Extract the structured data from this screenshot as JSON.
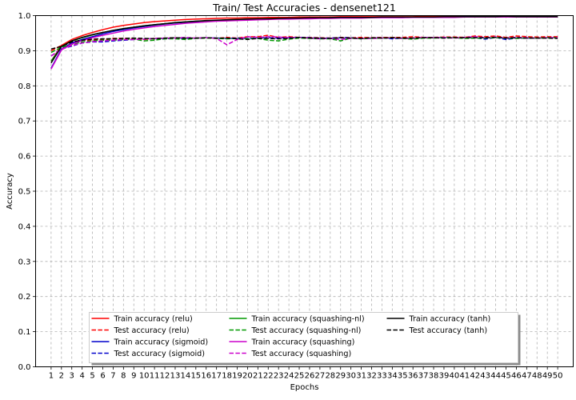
{
  "chart_data": {
    "type": "line",
    "title": "Train/ Test Accuracies - densenet121",
    "xlabel": "Epochs",
    "ylabel": "Accuracy",
    "xlim": [
      -0.5,
      51.5
    ],
    "ylim": [
      0.0,
      1.0
    ],
    "x": [
      1,
      2,
      3,
      4,
      5,
      6,
      7,
      8,
      9,
      10,
      11,
      12,
      13,
      14,
      15,
      16,
      17,
      18,
      19,
      20,
      21,
      22,
      23,
      24,
      25,
      26,
      27,
      28,
      29,
      30,
      31,
      32,
      33,
      34,
      35,
      36,
      37,
      38,
      39,
      40,
      41,
      42,
      43,
      44,
      45,
      46,
      47,
      48,
      49,
      50
    ],
    "yticks": [
      0.0,
      0.1,
      0.2,
      0.3,
      0.4,
      0.5,
      0.6,
      0.7,
      0.8,
      0.9,
      1.0
    ],
    "ytick_labels": [
      "0.0",
      "0.1",
      "0.2",
      "0.3",
      "0.4",
      "0.5",
      "0.6",
      "0.7",
      "0.8",
      "0.9",
      "1.0"
    ],
    "grid": true,
    "legend": {
      "placement": "lower-center",
      "columns": 3
    },
    "series": [
      {
        "name": "Train accuracy (relu)",
        "color": "#ff0000",
        "dash": "solid",
        "values": [
          0.87,
          0.915,
          0.932,
          0.943,
          0.952,
          0.96,
          0.967,
          0.972,
          0.976,
          0.98,
          0.983,
          0.985,
          0.987,
          0.989,
          0.99,
          0.991,
          0.992,
          0.993,
          0.993,
          0.994,
          0.994,
          0.995,
          0.995,
          0.995,
          0.996,
          0.996,
          0.996,
          0.996,
          0.997,
          0.997,
          0.997,
          0.997,
          0.997,
          0.997,
          0.997,
          0.997,
          0.998,
          0.998,
          0.998,
          0.998,
          0.998,
          0.998,
          0.998,
          0.998,
          0.998,
          0.998,
          0.998,
          0.998,
          0.998,
          0.998
        ]
      },
      {
        "name": "Test accuracy (relu)",
        "color": "#ff0000",
        "dash": "dashed",
        "values": [
          0.9,
          0.915,
          0.925,
          0.93,
          0.93,
          0.932,
          0.935,
          0.935,
          0.935,
          0.932,
          0.935,
          0.935,
          0.937,
          0.935,
          0.936,
          0.937,
          0.935,
          0.938,
          0.936,
          0.94,
          0.94,
          0.944,
          0.938,
          0.94,
          0.938,
          0.938,
          0.937,
          0.936,
          0.938,
          0.937,
          0.938,
          0.937,
          0.938,
          0.938,
          0.938,
          0.94,
          0.938,
          0.938,
          0.939,
          0.939,
          0.938,
          0.942,
          0.94,
          0.942,
          0.938,
          0.942,
          0.94,
          0.939,
          0.94,
          0.94
        ]
      },
      {
        "name": "Train accuracy (sigmoid)",
        "color": "#0000cc",
        "dash": "solid",
        "values": [
          0.85,
          0.905,
          0.922,
          0.932,
          0.94,
          0.948,
          0.955,
          0.96,
          0.965,
          0.969,
          0.973,
          0.976,
          0.979,
          0.981,
          0.983,
          0.985,
          0.986,
          0.987,
          0.988,
          0.989,
          0.99,
          0.991,
          0.991,
          0.992,
          0.992,
          0.993,
          0.993,
          0.994,
          0.994,
          0.994,
          0.995,
          0.995,
          0.995,
          0.995,
          0.996,
          0.996,
          0.996,
          0.996,
          0.996,
          0.996,
          0.997,
          0.997,
          0.997,
          0.997,
          0.997,
          0.997,
          0.997,
          0.997,
          0.997,
          0.997
        ]
      },
      {
        "name": "Test accuracy (sigmoid)",
        "color": "#0000cc",
        "dash": "dashed",
        "values": [
          0.885,
          0.905,
          0.913,
          0.922,
          0.925,
          0.925,
          0.928,
          0.93,
          0.932,
          0.933,
          0.935,
          0.934,
          0.936,
          0.935,
          0.936,
          0.937,
          0.936,
          0.935,
          0.936,
          0.935,
          0.936,
          0.937,
          0.936,
          0.937,
          0.938,
          0.937,
          0.936,
          0.936,
          0.937,
          0.937,
          0.934,
          0.936,
          0.937,
          0.934,
          0.936,
          0.934,
          0.937,
          0.937,
          0.938,
          0.937,
          0.936,
          0.937,
          0.933,
          0.938,
          0.932,
          0.936,
          0.936,
          0.936,
          0.937,
          0.937
        ]
      },
      {
        "name": "Train accuracy (squashing-nl)",
        "color": "#009900",
        "dash": "solid",
        "values": [
          0.87,
          0.912,
          0.928,
          0.937,
          0.945,
          0.952,
          0.958,
          0.963,
          0.967,
          0.971,
          0.974,
          0.977,
          0.98,
          0.982,
          0.984,
          0.985,
          0.986,
          0.988,
          0.989,
          0.99,
          0.99,
          0.991,
          0.992,
          0.992,
          0.993,
          0.993,
          0.993,
          0.994,
          0.994,
          0.994,
          0.995,
          0.995,
          0.995,
          0.995,
          0.995,
          0.996,
          0.996,
          0.996,
          0.996,
          0.996,
          0.996,
          0.997,
          0.997,
          0.997,
          0.997,
          0.997,
          0.997,
          0.997,
          0.997,
          0.997
        ]
      },
      {
        "name": "Test accuracy (squashing-nl)",
        "color": "#009900",
        "dash": "dashed",
        "values": [
          0.895,
          0.91,
          0.918,
          0.925,
          0.928,
          0.93,
          0.93,
          0.932,
          0.933,
          0.928,
          0.93,
          0.934,
          0.934,
          0.932,
          0.935,
          0.936,
          0.935,
          0.934,
          0.935,
          0.934,
          0.935,
          0.93,
          0.928,
          0.933,
          0.936,
          0.935,
          0.934,
          0.934,
          0.928,
          0.936,
          0.934,
          0.935,
          0.936,
          0.937,
          0.935,
          0.933,
          0.936,
          0.936,
          0.938,
          0.937,
          0.935,
          0.936,
          0.936,
          0.937,
          0.936,
          0.935,
          0.937,
          0.936,
          0.937,
          0.937
        ]
      },
      {
        "name": "Train accuracy (squashing)",
        "color": "#cc00cc",
        "dash": "solid",
        "values": [
          0.848,
          0.902,
          0.919,
          0.929,
          0.937,
          0.944,
          0.95,
          0.956,
          0.961,
          0.965,
          0.969,
          0.972,
          0.975,
          0.978,
          0.98,
          0.982,
          0.984,
          0.985,
          0.986,
          0.987,
          0.988,
          0.989,
          0.99,
          0.99,
          0.991,
          0.991,
          0.992,
          0.992,
          0.993,
          0.993,
          0.993,
          0.994,
          0.994,
          0.994,
          0.994,
          0.995,
          0.995,
          0.995,
          0.995,
          0.995,
          0.996,
          0.996,
          0.996,
          0.996,
          0.996,
          0.996,
          0.996,
          0.996,
          0.996,
          0.996
        ]
      },
      {
        "name": "Test accuracy (squashing)",
        "color": "#cc00cc",
        "dash": "dashed",
        "values": [
          0.885,
          0.905,
          0.915,
          0.922,
          0.926,
          0.928,
          0.93,
          0.932,
          0.932,
          0.933,
          0.935,
          0.936,
          0.936,
          0.938,
          0.936,
          0.937,
          0.935,
          0.917,
          0.932,
          0.94,
          0.938,
          0.94,
          0.939,
          0.937,
          0.938,
          0.936,
          0.934,
          0.935,
          0.932,
          0.935,
          0.935,
          0.935,
          0.936,
          0.937,
          0.935,
          0.936,
          0.938,
          0.937,
          0.938,
          0.936,
          0.938,
          0.94,
          0.937,
          0.939,
          0.936,
          0.938,
          0.937,
          0.936,
          0.937,
          0.937
        ]
      },
      {
        "name": "Train accuracy (tanh)",
        "color": "#000000",
        "dash": "solid",
        "values": [
          0.865,
          0.912,
          0.928,
          0.938,
          0.946,
          0.952,
          0.958,
          0.963,
          0.967,
          0.971,
          0.974,
          0.977,
          0.98,
          0.982,
          0.984,
          0.986,
          0.987,
          0.988,
          0.989,
          0.99,
          0.991,
          0.991,
          0.992,
          0.993,
          0.993,
          0.994,
          0.994,
          0.994,
          0.995,
          0.995,
          0.995,
          0.995,
          0.996,
          0.996,
          0.996,
          0.996,
          0.996,
          0.996,
          0.997,
          0.997,
          0.997,
          0.997,
          0.997,
          0.997,
          0.998,
          0.997,
          0.997,
          0.997,
          0.997,
          0.997
        ]
      },
      {
        "name": "Test accuracy (tanh)",
        "color": "#000000",
        "dash": "dashed",
        "values": [
          0.905,
          0.912,
          0.925,
          0.93,
          0.933,
          0.934,
          0.934,
          0.935,
          0.936,
          0.935,
          0.934,
          0.936,
          0.937,
          0.936,
          0.936,
          0.937,
          0.936,
          0.936,
          0.934,
          0.932,
          0.935,
          0.935,
          0.934,
          0.935,
          0.938,
          0.936,
          0.936,
          0.935,
          0.937,
          0.936,
          0.935,
          0.937,
          0.936,
          0.937,
          0.936,
          0.936,
          0.937,
          0.937,
          0.936,
          0.937,
          0.937,
          0.937,
          0.937,
          0.938,
          0.936,
          0.937,
          0.936,
          0.936,
          0.936,
          0.935
        ]
      }
    ]
  }
}
